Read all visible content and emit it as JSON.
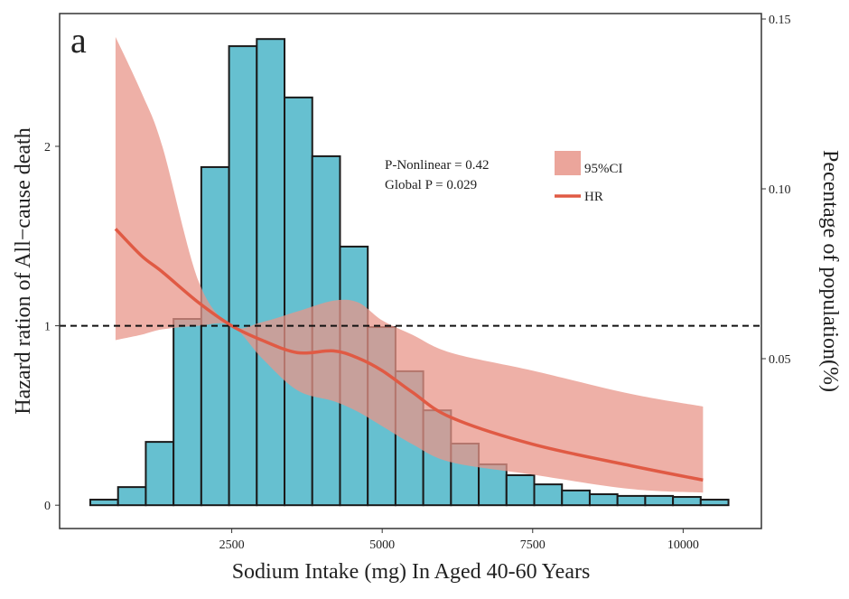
{
  "chart_data": {
    "type": "bar+line",
    "panel_label": "a",
    "xlabel": "Sodium Intake (mg) In Aged 40-60 Years",
    "ylabel_left": "Hazard ration of All−cause death",
    "ylabel_right": "Pecentage of population(%)",
    "x_ticks": [
      2500,
      5000,
      7500,
      10000
    ],
    "y_left_ticks": [
      0,
      1,
      2
    ],
    "y_right_ticks": [
      "0.05",
      "0.10",
      "0.15"
    ],
    "y_right_tick_values": [
      0.05,
      0.1,
      0.15
    ],
    "xlim": [
      -360,
      11300
    ],
    "ylim_left": [
      -0.13,
      2.74
    ],
    "ylim_right": [
      0,
      0.1516
    ],
    "reference_line_hr": 1,
    "grid": false,
    "histogram": {
      "bin_start": 150,
      "bin_width": 461,
      "values": [
        0.0085,
        0.0122,
        0.0255,
        0.0617,
        0.1064,
        0.142,
        0.1441,
        0.1269,
        0.1096,
        0.083,
        0.0593,
        0.0463,
        0.0348,
        0.025,
        0.0189,
        0.0157,
        0.013,
        0.0112,
        0.0101,
        0.0096,
        0.0096,
        0.0093,
        0.0085
      ],
      "color": "#66c0d0"
    },
    "hr_curve": {
      "x": [
        569,
        1000,
        1347,
        1946,
        2500,
        3000,
        3593,
        4192,
        4600,
        5000,
        5500,
        6138,
        7500,
        9132,
        10330
      ],
      "hr": [
        1.54,
        1.39,
        1.3,
        1.13,
        1.0,
        0.92,
        0.85,
        0.86,
        0.82,
        0.75,
        0.63,
        0.49,
        0.34,
        0.22,
        0.14
      ],
      "upper": [
        2.61,
        2.3,
        2.0,
        1.25,
        1.0,
        1.02,
        1.08,
        1.14,
        1.13,
        1.03,
        0.95,
        0.85,
        0.75,
        0.62,
        0.55
      ],
      "lower": [
        0.92,
        0.95,
        0.98,
        1.0,
        1.0,
        0.82,
        0.64,
        0.58,
        0.52,
        0.44,
        0.34,
        0.24,
        0.17,
        0.09,
        0.07
      ],
      "line_color": "#e05a44",
      "ci_color": "#e8958a"
    },
    "annotations": [
      "P-Nonlinear = 0.42",
      "Global P = 0.029"
    ],
    "legend": {
      "placement": "top-right",
      "items": [
        {
          "label": "95%CI",
          "type": "band"
        },
        {
          "label": "HR",
          "type": "line"
        }
      ]
    }
  }
}
